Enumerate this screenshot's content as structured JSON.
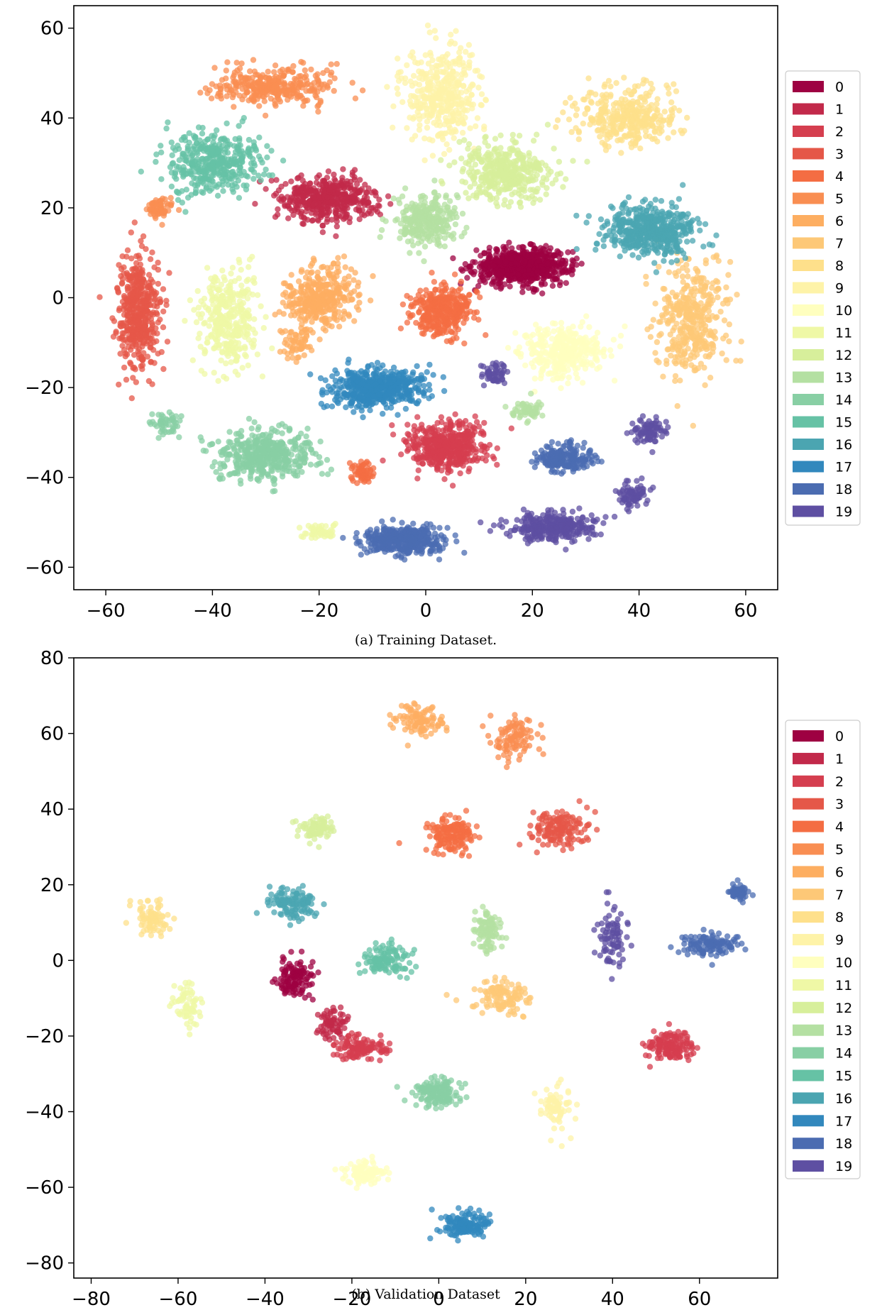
{
  "colors": [
    "#9e0142",
    "#c2294a",
    "#d53e4f",
    "#e55748",
    "#f46d43",
    "#f98e52",
    "#fdae61",
    "#fdc877",
    "#fee08b",
    "#fef3a8",
    "#ffffbf",
    "#eff8a6",
    "#d7ef9b",
    "#b4e0a2",
    "#88cfa4",
    "#66c2a5",
    "#4ba5b1",
    "#3288bd",
    "#4b6cb1",
    "#5e4fa2"
  ],
  "chart_data": [
    {
      "type": "scatter",
      "caption": "(a) Training Dataset.",
      "xlim": [
        -66,
        66
      ],
      "ylim": [
        -65,
        65
      ],
      "xticks": [
        -60,
        -40,
        -20,
        0,
        20,
        40,
        60
      ],
      "yticks": [
        60,
        40,
        20,
        0,
        -20,
        -40,
        -60
      ],
      "legend": {
        "position": "right",
        "entries": [
          "0",
          "1",
          "2",
          "3",
          "4",
          "5",
          "6",
          "7",
          "8",
          "9",
          "10",
          "11",
          "12",
          "13",
          "14",
          "15",
          "16",
          "17",
          "18",
          "19"
        ]
      },
      "clusters": [
        {
          "label": 0,
          "x": 18,
          "y": 7,
          "sx": 8,
          "sy": 3.5,
          "n": 700
        },
        {
          "label": 1,
          "x": -18,
          "y": 22,
          "sx": 8,
          "sy": 4.5,
          "n": 450
        },
        {
          "label": 2,
          "x": 4,
          "y": -33,
          "sx": 7,
          "sy": 5,
          "n": 450
        },
        {
          "label": 3,
          "x": -54,
          "y": -3,
          "sx": 3.5,
          "sy": 11,
          "n": 450
        },
        {
          "label": 4,
          "x": 3,
          "y": -3,
          "sx": 5,
          "sy": 5,
          "n": 350
        },
        {
          "label": 4,
          "x": -12,
          "y": -39,
          "sx": 2,
          "sy": 2,
          "n": 60
        },
        {
          "label": 5,
          "x": -28,
          "y": 47,
          "sx": 10,
          "sy": 4,
          "n": 320
        },
        {
          "label": 5,
          "x": -50,
          "y": 20,
          "sx": 2.5,
          "sy": 2,
          "n": 60
        },
        {
          "label": 6,
          "x": -20,
          "y": 0,
          "sx": 6,
          "sy": 6,
          "n": 350
        },
        {
          "label": 6,
          "x": -24,
          "y": -10,
          "sx": 3,
          "sy": 3,
          "n": 60
        },
        {
          "label": 7,
          "x": 50,
          "y": -5,
          "sx": 6,
          "sy": 11,
          "n": 400
        },
        {
          "label": 8,
          "x": 38,
          "y": 40,
          "sx": 9,
          "sy": 6,
          "n": 350
        },
        {
          "label": 9,
          "x": 3,
          "y": 45,
          "sx": 6,
          "sy": 10,
          "n": 400
        },
        {
          "label": 10,
          "x": 26,
          "y": -12,
          "sx": 7,
          "sy": 5,
          "n": 350
        },
        {
          "label": 11,
          "x": -37,
          "y": -5,
          "sx": 5,
          "sy": 10,
          "n": 350
        },
        {
          "label": 11,
          "x": -20,
          "y": -52,
          "sx": 3,
          "sy": 1.5,
          "n": 60
        },
        {
          "label": 12,
          "x": 15,
          "y": 28,
          "sx": 8,
          "sy": 6,
          "n": 400
        },
        {
          "label": 13,
          "x": 0,
          "y": 17,
          "sx": 5,
          "sy": 5,
          "n": 300
        },
        {
          "label": 13,
          "x": 19,
          "y": -25,
          "sx": 3,
          "sy": 2,
          "n": 60
        },
        {
          "label": 14,
          "x": -30,
          "y": -35,
          "sx": 8,
          "sy": 5,
          "n": 450
        },
        {
          "label": 14,
          "x": -49,
          "y": -28,
          "sx": 2.5,
          "sy": 2,
          "n": 50
        },
        {
          "label": 15,
          "x": -40,
          "y": 30,
          "sx": 8,
          "sy": 6,
          "n": 400
        },
        {
          "label": 16,
          "x": 42,
          "y": 15,
          "sx": 8,
          "sy": 5,
          "n": 500
        },
        {
          "label": 17,
          "x": -9,
          "y": -20,
          "sx": 8,
          "sy": 4,
          "n": 500
        },
        {
          "label": 18,
          "x": -4,
          "y": -54,
          "sx": 7,
          "sy": 3,
          "n": 400
        },
        {
          "label": 18,
          "x": 26,
          "y": -36,
          "sx": 5,
          "sy": 3,
          "n": 200
        },
        {
          "label": 19,
          "x": 24,
          "y": -51,
          "sx": 7,
          "sy": 3,
          "n": 300
        },
        {
          "label": 19,
          "x": 13,
          "y": -17,
          "sx": 2.5,
          "sy": 2.5,
          "n": 60
        },
        {
          "label": 19,
          "x": 42,
          "y": -30,
          "sx": 3,
          "sy": 2.5,
          "n": 80
        },
        {
          "label": 19,
          "x": 39,
          "y": -44,
          "sx": 3,
          "sy": 2.5,
          "n": 80
        }
      ]
    },
    {
      "type": "scatter",
      "caption": "(b) Validation Dataset",
      "xlim": [
        -84,
        78
      ],
      "ylim": [
        -84,
        80
      ],
      "xticks": [
        -80,
        -60,
        -40,
        -20,
        0,
        20,
        40,
        60
      ],
      "yticks": [
        80,
        60,
        40,
        20,
        0,
        -20,
        -40,
        -60,
        -80
      ],
      "legend": {
        "position": "right",
        "entries": [
          "0",
          "1",
          "2",
          "3",
          "4",
          "5",
          "6",
          "7",
          "8",
          "9",
          "10",
          "11",
          "12",
          "13",
          "14",
          "15",
          "16",
          "17",
          "18",
          "19"
        ]
      },
      "clusters": [
        {
          "label": 0,
          "x": -33,
          "y": -5,
          "sx": 4,
          "sy": 5,
          "n": 120
        },
        {
          "label": 1,
          "x": -24,
          "y": -17,
          "sx": 3,
          "sy": 4,
          "n": 70
        },
        {
          "label": 2,
          "x": -18,
          "y": -23,
          "sx": 5,
          "sy": 3,
          "n": 120
        },
        {
          "label": 2,
          "x": 53,
          "y": -23,
          "sx": 5,
          "sy": 3.5,
          "n": 150
        },
        {
          "label": 3,
          "x": 28,
          "y": 35,
          "sx": 6,
          "sy": 4,
          "n": 150
        },
        {
          "label": 4,
          "x": 3,
          "y": 33,
          "sx": 5,
          "sy": 4,
          "n": 150
        },
        {
          "label": 5,
          "x": 17,
          "y": 59,
          "sx": 5,
          "sy": 5,
          "n": 100
        },
        {
          "label": 6,
          "x": -5,
          "y": 63,
          "sx": 5,
          "sy": 4,
          "n": 100
        },
        {
          "label": 7,
          "x": 15,
          "y": -10,
          "sx": 6,
          "sy": 4,
          "n": 120
        },
        {
          "label": 8,
          "x": -66,
          "y": 11,
          "sx": 4,
          "sy": 4,
          "n": 80
        },
        {
          "label": 9,
          "x": 27,
          "y": -38,
          "sx": 3,
          "sy": 6,
          "n": 80
        },
        {
          "label": 10,
          "x": -17,
          "y": -56,
          "sx": 4,
          "sy": 3,
          "n": 100
        },
        {
          "label": 11,
          "x": -58,
          "y": -12,
          "sx": 3,
          "sy": 6,
          "n": 70
        },
        {
          "label": 12,
          "x": -28,
          "y": 35,
          "sx": 4,
          "sy": 3,
          "n": 80
        },
        {
          "label": 13,
          "x": 11,
          "y": 8,
          "sx": 3,
          "sy": 5,
          "n": 100
        },
        {
          "label": 14,
          "x": 0,
          "y": -35,
          "sx": 5,
          "sy": 3.5,
          "n": 150
        },
        {
          "label": 15,
          "x": -12,
          "y": 0,
          "sx": 5,
          "sy": 4,
          "n": 120
        },
        {
          "label": 16,
          "x": -34,
          "y": 15,
          "sx": 5,
          "sy": 4,
          "n": 120
        },
        {
          "label": 17,
          "x": 6,
          "y": -70,
          "sx": 5,
          "sy": 3,
          "n": 150
        },
        {
          "label": 18,
          "x": 62,
          "y": 4,
          "sx": 7,
          "sy": 3,
          "n": 120
        },
        {
          "label": 18,
          "x": 69,
          "y": 18,
          "sx": 2.5,
          "sy": 2,
          "n": 50
        },
        {
          "label": 19,
          "x": 40,
          "y": 6,
          "sx": 3,
          "sy": 7,
          "n": 80
        }
      ]
    }
  ]
}
